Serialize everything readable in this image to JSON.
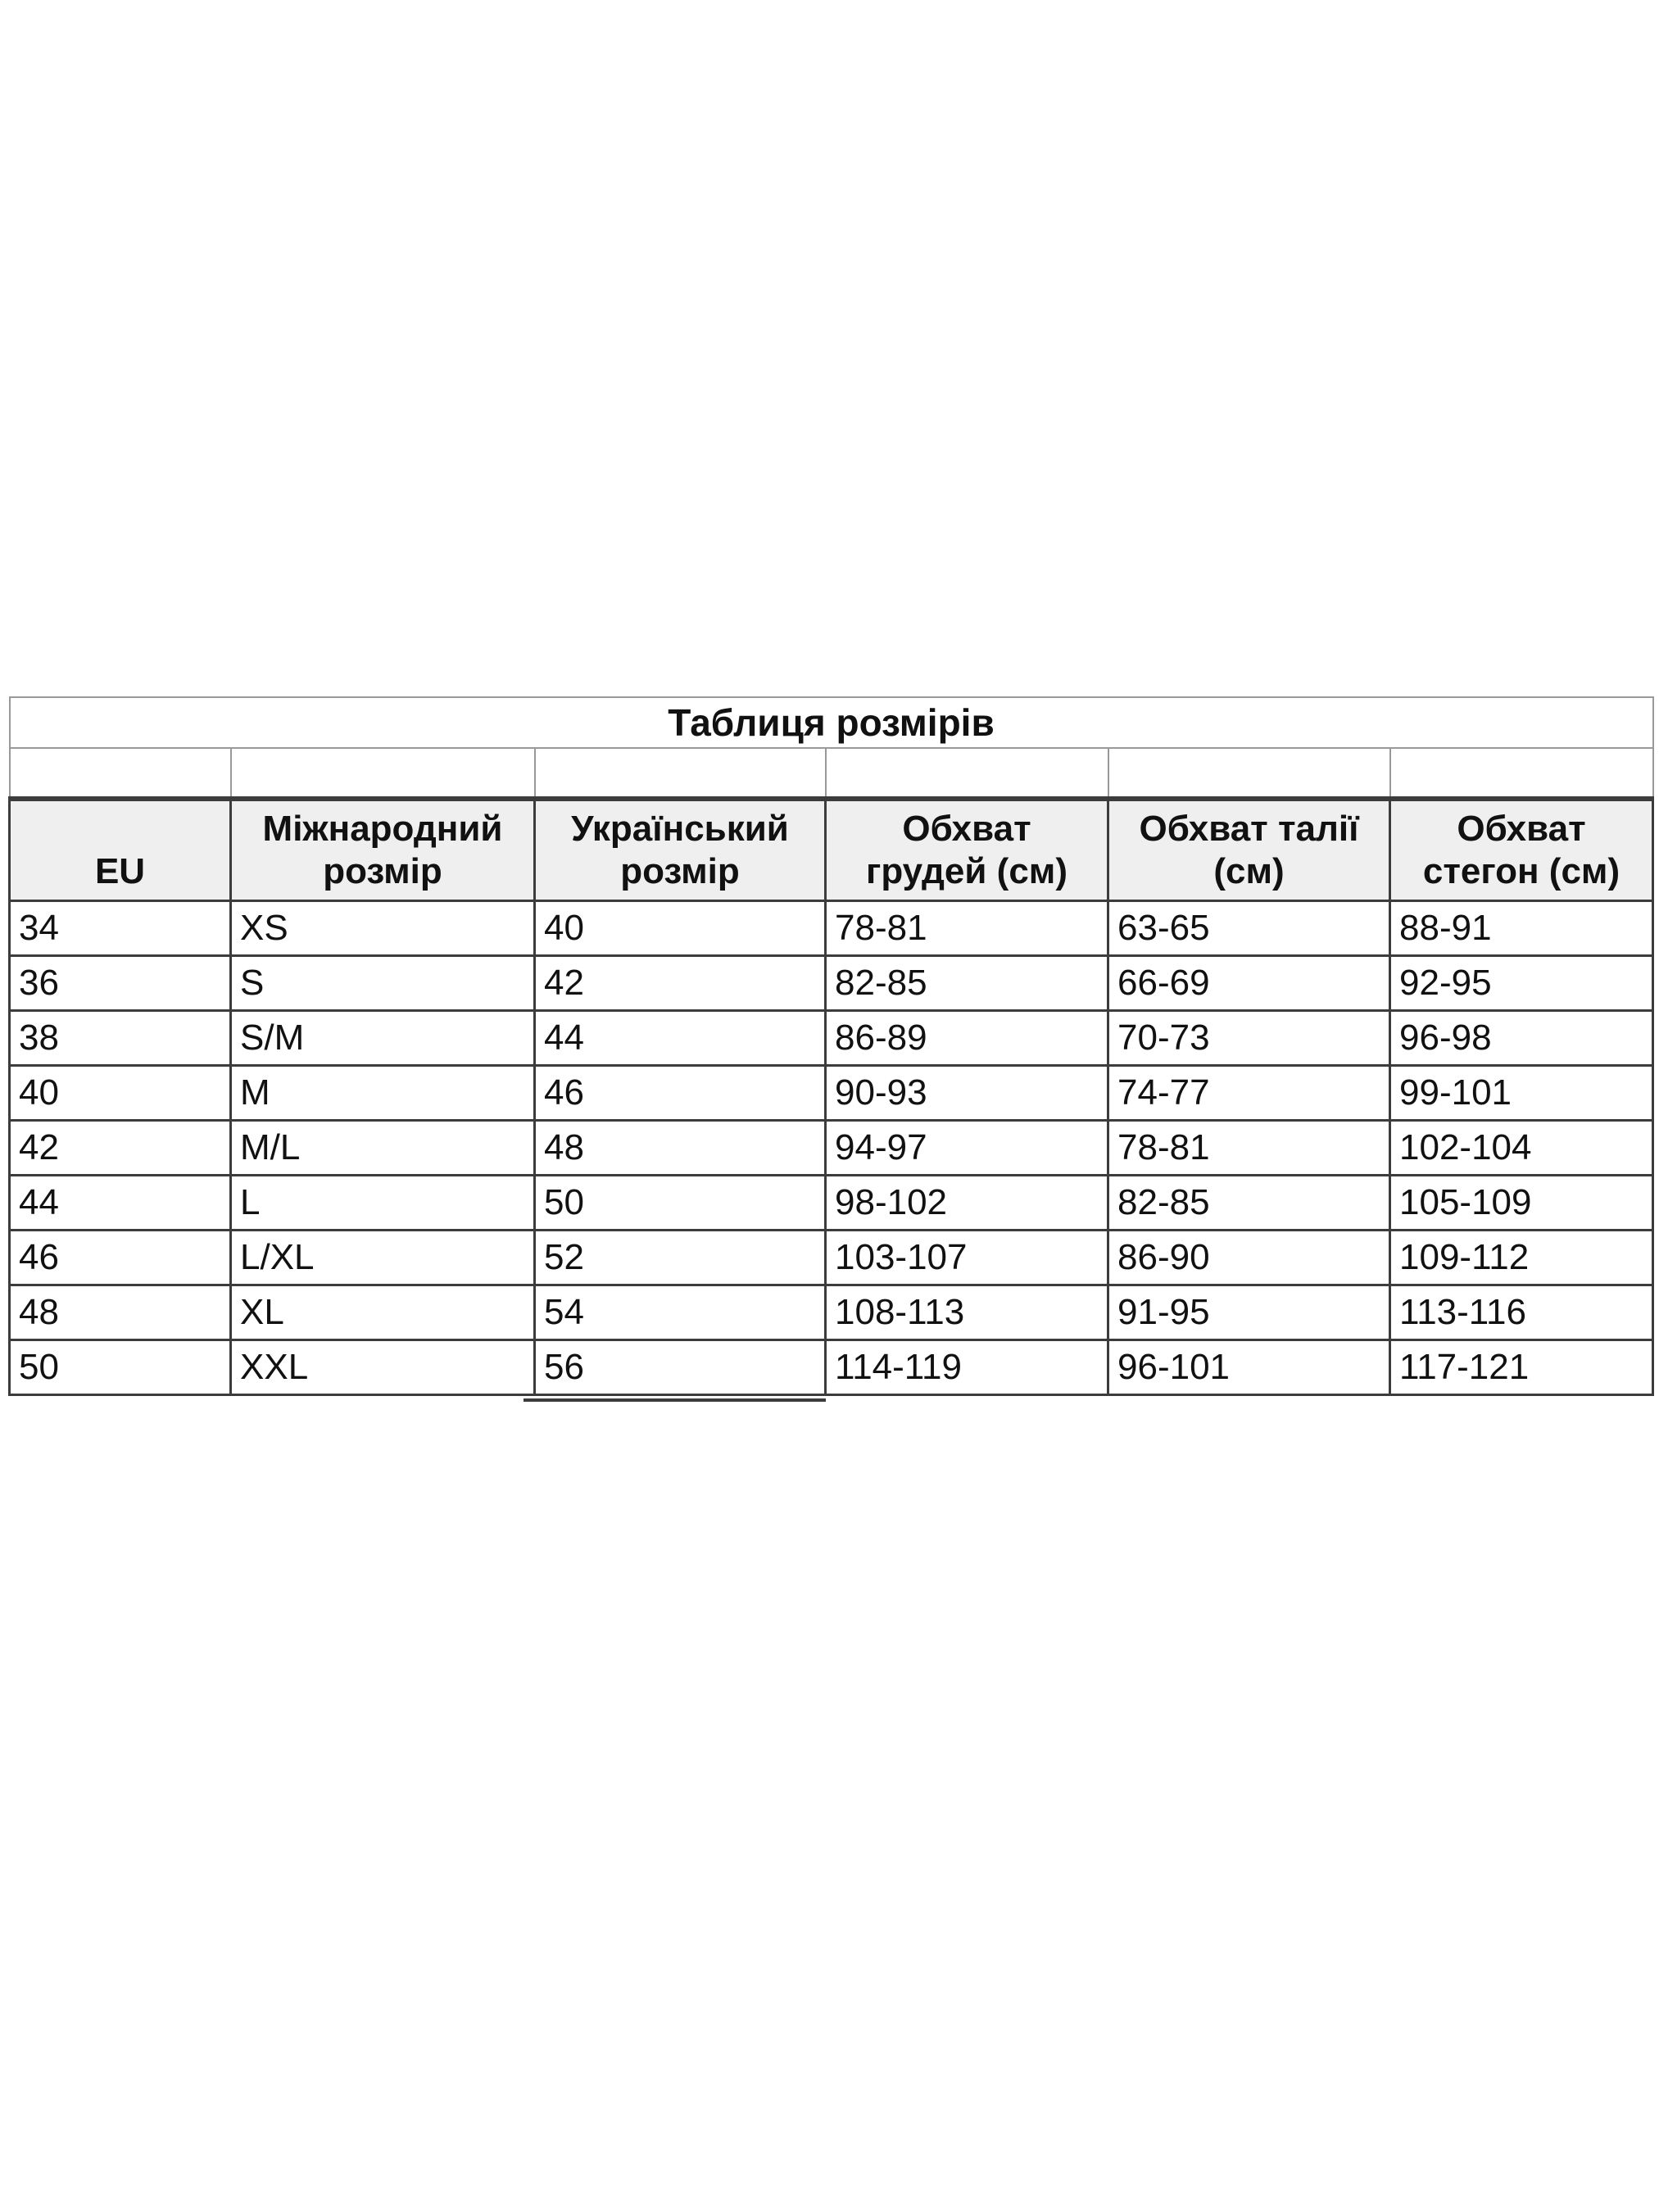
{
  "title": "Таблиця розмірів",
  "columns": [
    "EU",
    "Міжнародний\nрозмір",
    "Український\nрозмір",
    "Обхват\nгрудей (см)",
    "Обхват талії\n(см)",
    "Обхват\nстегон (см)"
  ],
  "rows": [
    [
      "34",
      "XS",
      "40",
      "78-81",
      "63-65",
      "88-91"
    ],
    [
      "36",
      "S",
      "42",
      "82-85",
      "66-69",
      "92-95"
    ],
    [
      "38",
      "S/M",
      "44",
      "86-89",
      "70-73",
      "96-98"
    ],
    [
      "40",
      "M",
      "46",
      "90-93",
      "74-77",
      "99-101"
    ],
    [
      "42",
      "M/L",
      "48",
      "94-97",
      "78-81",
      "102-104"
    ],
    [
      "44",
      "L",
      "50",
      "98-102",
      "82-85",
      "105-109"
    ],
    [
      "46",
      "L/XL",
      "52",
      "103-107",
      "86-90",
      "109-112"
    ],
    [
      "48",
      "XL",
      "54",
      "108-113",
      "91-95",
      "113-116"
    ],
    [
      "50",
      "XXL",
      "56",
      "114-119",
      "96-101",
      "117-121"
    ]
  ],
  "column_keys": [
    "eu",
    "int-size",
    "ua-size",
    "chest",
    "waist",
    "hips"
  ],
  "colors": {
    "header_bg": "#efefef",
    "border_dark": "#3c3c3c",
    "border_light": "#999999",
    "text": "#111111",
    "page_bg": "#ffffff"
  }
}
